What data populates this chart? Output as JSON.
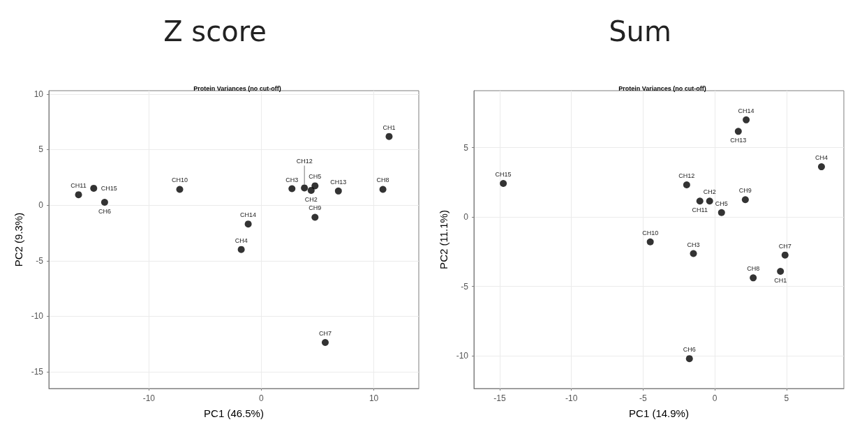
{
  "chart_data": [
    {
      "type": "scatter",
      "title": "Z score",
      "subtitle": "Protein Variances (no cut-off)",
      "xlabel": "PC1 (46.5%)",
      "ylabel": "PC2 (9.3%)",
      "x": [
        11.36,
        4.43,
        2.72,
        -1.79,
        4.77,
        -13.94,
        5.68,
        10.81,
        4.77,
        -7.26,
        -16.26,
        3.83,
        6.85,
        -1.17,
        -14.91
      ],
      "series": [
        {
          "color": "#000000",
          "values": [
            6.18,
            1.33,
            1.48,
            -3.99,
            1.74,
            0.26,
            -12.36,
            1.42,
            -1.09,
            1.42,
            0.94,
            1.55,
            1.27,
            -1.7,
            1.52
          ]
        }
      ],
      "annotations": [
        {
          "text": "CH1",
          "x": 11.36,
          "y": 6.18
        },
        {
          "text": "CH2",
          "x": 4.43,
          "y": 1.33
        },
        {
          "text": "CH3",
          "x": 2.72,
          "y": 1.48
        },
        {
          "text": "CH4",
          "x": -1.79,
          "y": -3.99
        },
        {
          "text": "CH5",
          "x": 4.77,
          "y": 1.74
        },
        {
          "text": "CH6",
          "x": -13.94,
          "y": 0.26
        },
        {
          "text": "CH7",
          "x": 5.68,
          "y": -12.36
        },
        {
          "text": "CH8",
          "x": 10.81,
          "y": 1.42
        },
        {
          "text": "CH9",
          "x": 4.77,
          "y": -1.09
        },
        {
          "text": "CH10",
          "x": -7.26,
          "y": 1.42
        },
        {
          "text": "CH11",
          "x": -16.26,
          "y": 0.94
        },
        {
          "text": "CH12",
          "x": 3.83,
          "y": 1.55
        },
        {
          "text": "CH13",
          "x": 6.85,
          "y": 1.27
        },
        {
          "text": "CH14",
          "x": -1.17,
          "y": -1.7
        },
        {
          "text": "CH15",
          "x": -14.91,
          "y": 1.52
        }
      ],
      "xlim": [
        -18.9,
        14
      ],
      "xticks": [
        -10,
        0,
        10
      ],
      "ylim": [
        -16.5,
        10.3
      ],
      "yticks": [
        -15,
        -10,
        -5,
        0,
        5,
        10
      ],
      "grid": true,
      "marker": "circle"
    },
    {
      "type": "scatter",
      "title": "Sum",
      "subtitle": "Protein Variances (no cut-off)",
      "xlabel": "PC1 (14.9%)",
      "ylabel": "PC2 (11.1%)",
      "x": [
        4.58,
        -0.36,
        -1.49,
        7.44,
        0.47,
        -1.77,
        4.9,
        2.68,
        2.13,
        -4.5,
        -1.04,
        -1.96,
        1.64,
        2.19,
        -14.75
      ],
      "series": [
        {
          "color": "#000000",
          "values": [
            -3.91,
            1.15,
            -2.63,
            3.62,
            0.32,
            -10.2,
            -2.74,
            -4.38,
            1.25,
            -1.79,
            1.15,
            2.32,
            6.17,
            7.0,
            2.42
          ]
        }
      ],
      "annotations": [
        {
          "text": "CH1",
          "x": 4.58,
          "y": -3.91
        },
        {
          "text": "CH2",
          "x": -0.36,
          "y": 1.15
        },
        {
          "text": "CH3",
          "x": -1.49,
          "y": -2.63
        },
        {
          "text": "CH4",
          "x": 7.44,
          "y": 3.62
        },
        {
          "text": "CH5",
          "x": 0.47,
          "y": 0.32
        },
        {
          "text": "CH6",
          "x": -1.77,
          "y": -10.2
        },
        {
          "text": "CH7",
          "x": 4.9,
          "y": -2.74
        },
        {
          "text": "CH8",
          "x": 2.68,
          "y": -4.38
        },
        {
          "text": "CH9",
          "x": 2.13,
          "y": 1.25
        },
        {
          "text": "CH10",
          "x": -4.5,
          "y": -1.79
        },
        {
          "text": "CH11",
          "x": -1.04,
          "y": 1.15
        },
        {
          "text": "CH12",
          "x": -1.96,
          "y": 2.32
        },
        {
          "text": "CH13",
          "x": 1.64,
          "y": 6.17
        },
        {
          "text": "CH14",
          "x": 2.19,
          "y": 7.0
        },
        {
          "text": "CH15",
          "x": -14.75,
          "y": 2.42
        }
      ],
      "xlim": [
        -16.8,
        9
      ],
      "xticks": [
        -15,
        -10,
        -5,
        0,
        5
      ],
      "ylim": [
        -12.35,
        9.1
      ],
      "yticks": [
        -10,
        -5,
        0,
        5
      ],
      "grid": true,
      "marker": "circle"
    }
  ]
}
